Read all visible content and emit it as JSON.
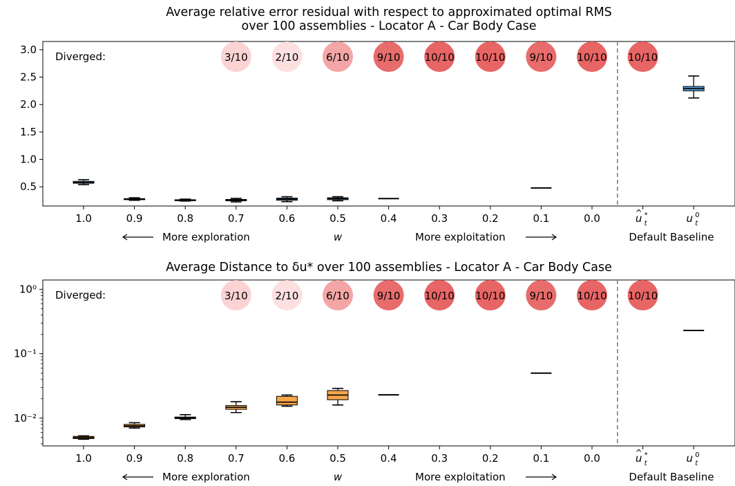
{
  "chart_data": [
    {
      "type": "box",
      "title": "Average relative error residual with respect to approximated optimal RMS",
      "subtitle": "over 100 assemblies - Locator A - Car Body Case",
      "scale": "linear",
      "ylim": [
        0.15,
        3.15
      ],
      "yticks": [
        0.5,
        1.0,
        1.5,
        2.0,
        2.5,
        3.0
      ],
      "ytick_labels": [
        "0.5",
        "1.0",
        "1.5",
        "2.0",
        "2.5",
        "3.0"
      ],
      "categories": [
        "1.0",
        "0.9",
        "0.8",
        "0.7",
        "0.6",
        "0.5",
        "0.4",
        "0.3",
        "0.2",
        "0.1",
        "0.0"
      ],
      "baseline_categories": [
        "û*_t",
        "u⁰_t"
      ],
      "x_annotations": {
        "exploration": "More exploration",
        "w": "w",
        "exploitation": "More exploitation",
        "baseline": "Default Baseline"
      },
      "diverged_label": "Diverged:",
      "diverged": [
        {
          "position": 4,
          "text": "3/10",
          "color": "#fbd3d3"
        },
        {
          "position": 5,
          "text": "2/10",
          "color": "#fce0e0"
        },
        {
          "position": 6,
          "text": "6/10",
          "color": "#f4a6a6"
        },
        {
          "position": 7,
          "text": "9/10",
          "color": "#e86c6c"
        },
        {
          "position": 8,
          "text": "10/10",
          "color": "#e86565"
        },
        {
          "position": 9,
          "text": "10/10",
          "color": "#e86565"
        },
        {
          "position": 10,
          "text": "9/10",
          "color": "#e86c6c"
        },
        {
          "position": 11,
          "text": "10/10",
          "color": "#e86565"
        },
        {
          "position": 12,
          "text": "10/10",
          "color": "#e86565"
        }
      ],
      "box_color": "#5b9bd5",
      "boxes": [
        {
          "position": 1,
          "label": "1.0",
          "whislo": 0.54,
          "q1": 0.565,
          "median": 0.58,
          "q3": 0.6,
          "whishi": 0.63
        },
        {
          "position": 2,
          "label": "0.9",
          "whislo": 0.255,
          "q1": 0.265,
          "median": 0.275,
          "q3": 0.285,
          "whishi": 0.3
        },
        {
          "position": 3,
          "label": "0.8",
          "whislo": 0.24,
          "q1": 0.25,
          "median": 0.258,
          "q3": 0.265,
          "whishi": 0.275
        },
        {
          "position": 4,
          "label": "0.7",
          "whislo": 0.225,
          "q1": 0.245,
          "median": 0.258,
          "q3": 0.27,
          "whishi": 0.29
        },
        {
          "position": 5,
          "label": "0.6",
          "whislo": 0.23,
          "q1": 0.255,
          "median": 0.275,
          "q3": 0.295,
          "whishi": 0.32
        },
        {
          "position": 6,
          "label": "0.5",
          "whislo": 0.245,
          "q1": 0.265,
          "median": 0.285,
          "q3": 0.3,
          "whishi": 0.32
        },
        {
          "position": 7,
          "label": "0.4",
          "whislo": 0.285,
          "q1": 0.285,
          "median": 0.285,
          "q3": 0.285,
          "whishi": 0.285
        },
        {
          "position": 10,
          "label": "0.1",
          "whislo": 0.48,
          "q1": 0.48,
          "median": 0.48,
          "q3": 0.48,
          "whishi": 0.48
        },
        {
          "position": 13,
          "label": "u⁰_t",
          "whislo": 2.12,
          "q1": 2.25,
          "median": 2.29,
          "q3": 2.33,
          "whishi": 2.52
        }
      ]
    },
    {
      "type": "box",
      "title": "Average Distance to δu* over 100 assemblies - Locator A - Car Body Case",
      "scale": "log",
      "ylim": [
        0.0037,
        1.4
      ],
      "yticks": [
        0.01,
        0.1,
        1
      ],
      "ytick_labels": [
        "10⁻²",
        "10⁻¹",
        "10⁰"
      ],
      "categories": [
        "1.0",
        "0.9",
        "0.8",
        "0.7",
        "0.6",
        "0.5",
        "0.4",
        "0.3",
        "0.2",
        "0.1",
        "0.0"
      ],
      "baseline_categories": [
        "û*_t",
        "u⁰_t"
      ],
      "x_annotations": {
        "exploration": "More exploration",
        "w": "w",
        "exploitation": "More exploitation",
        "baseline": "Default Baseline"
      },
      "diverged_label": "Diverged:",
      "diverged": [
        {
          "position": 4,
          "text": "3/10",
          "color": "#fbd3d3"
        },
        {
          "position": 5,
          "text": "2/10",
          "color": "#fce0e0"
        },
        {
          "position": 6,
          "text": "6/10",
          "color": "#f4a6a6"
        },
        {
          "position": 7,
          "text": "9/10",
          "color": "#e86c6c"
        },
        {
          "position": 8,
          "text": "10/10",
          "color": "#e86565"
        },
        {
          "position": 9,
          "text": "10/10",
          "color": "#e86565"
        },
        {
          "position": 10,
          "text": "9/10",
          "color": "#e86c6c"
        },
        {
          "position": 11,
          "text": "10/10",
          "color": "#e86565"
        },
        {
          "position": 12,
          "text": "10/10",
          "color": "#e86565"
        }
      ],
      "box_color": "#f7a64a",
      "boxes": [
        {
          "position": 1,
          "label": "1.0",
          "whislo": 0.0047,
          "q1": 0.0048,
          "median": 0.005,
          "q3": 0.0052,
          "whishi": 0.0053
        },
        {
          "position": 2,
          "label": "0.9",
          "whislo": 0.007,
          "q1": 0.0073,
          "median": 0.0076,
          "q3": 0.008,
          "whishi": 0.0085
        },
        {
          "position": 3,
          "label": "0.8",
          "whislo": 0.0095,
          "q1": 0.0098,
          "median": 0.0101,
          "q3": 0.0104,
          "whishi": 0.0113
        },
        {
          "position": 4,
          "label": "0.7",
          "whislo": 0.0122,
          "q1": 0.0137,
          "median": 0.0147,
          "q3": 0.0157,
          "whishi": 0.018
        },
        {
          "position": 5,
          "label": "0.6",
          "whislo": 0.0153,
          "q1": 0.016,
          "median": 0.0177,
          "q3": 0.0218,
          "whishi": 0.0228
        },
        {
          "position": 6,
          "label": "0.5",
          "whislo": 0.016,
          "q1": 0.0193,
          "median": 0.0228,
          "q3": 0.0268,
          "whishi": 0.029
        },
        {
          "position": 7,
          "label": "0.4",
          "whislo": 0.023,
          "q1": 0.023,
          "median": 0.023,
          "q3": 0.023,
          "whishi": 0.023
        },
        {
          "position": 10,
          "label": "0.1",
          "whislo": 0.05,
          "q1": 0.05,
          "median": 0.05,
          "q3": 0.05,
          "whishi": 0.05
        },
        {
          "position": 13,
          "label": "u⁰_t",
          "whislo": 0.23,
          "q1": 0.23,
          "median": 0.23,
          "q3": 0.23,
          "whishi": 0.23
        }
      ]
    }
  ]
}
